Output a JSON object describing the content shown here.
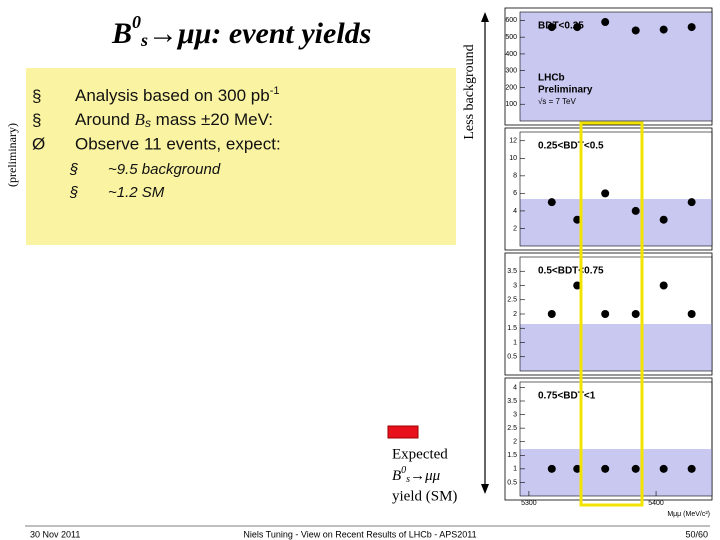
{
  "title": {
    "base": "B",
    "sup": "0",
    "sub": "s",
    "rest": "→μμ: event yields"
  },
  "side_label": "(preliminary)",
  "bullets": [
    {
      "marker": "§",
      "text": "Analysis based on 300 pb",
      "sup": "-1"
    },
    {
      "marker": "§",
      "pre": "Around ",
      "base": "B",
      "sub": "s",
      "post": " mass ±20 MeV:"
    },
    {
      "marker": "Ø",
      "text": "Observe 11 events, expect:"
    }
  ],
  "sub_bullets": [
    {
      "marker": "§",
      "text": "~9.5 background"
    },
    {
      "marker": "§",
      "text": "~1.2 SM"
    }
  ],
  "arrow_label": "Less background",
  "panels": [
    {
      "label": "BDT<0.25",
      "ylim": [
        0,
        650
      ],
      "yticks": [
        100,
        200,
        300,
        400,
        500,
        600
      ],
      "x": [
        5318,
        5338,
        5360,
        5384,
        5406,
        5428
      ],
      "values": [
        560,
        560,
        590,
        540,
        545,
        560
      ],
      "notes": [
        "LHCb",
        "Preliminary",
        "√s = 7 TeV"
      ]
    },
    {
      "label": "0.25<BDT<0.5",
      "ylim": [
        0,
        13
      ],
      "yticks": [
        2,
        4,
        6,
        8,
        10,
        12
      ],
      "x": [
        5318,
        5338,
        5360,
        5384,
        5406,
        5428
      ],
      "values": [
        5,
        3,
        6,
        4,
        3,
        5
      ]
    },
    {
      "label": "0.5<BDT<0.75",
      "ylim": [
        0,
        4
      ],
      "yticks": [
        0.5,
        1,
        1.5,
        2,
        2.5,
        3,
        3.5
      ],
      "x": [
        5318,
        5338,
        5360,
        5384,
        5406,
        5428
      ],
      "values": [
        2,
        3,
        2,
        2,
        3,
        2
      ]
    },
    {
      "label": "0.75<BDT<1",
      "ylim": [
        0,
        4.2
      ],
      "yticks": [
        0.5,
        1,
        1.5,
        2,
        2.5,
        3,
        3.5,
        4
      ],
      "x": [
        5318,
        5338,
        5360,
        5384,
        5406,
        5428
      ],
      "values": [
        1,
        1,
        1,
        1,
        1,
        1
      ]
    }
  ],
  "xlim": [
    5293,
    5444
  ],
  "xticks": [
    5300,
    5400
  ],
  "xlabel": "Mμμ (MeV/c²)",
  "legend": {
    "line1": "Expected",
    "base": "B",
    "sup": "0",
    "sub": "s",
    "rest": "→μμ",
    "line3": "yield  (SM)"
  },
  "footer": {
    "date": "30 Nov 2011",
    "center": "Niels Tuning  -  View on Recent Results of LHCb  -  APS2011",
    "page": "50/60"
  }
}
